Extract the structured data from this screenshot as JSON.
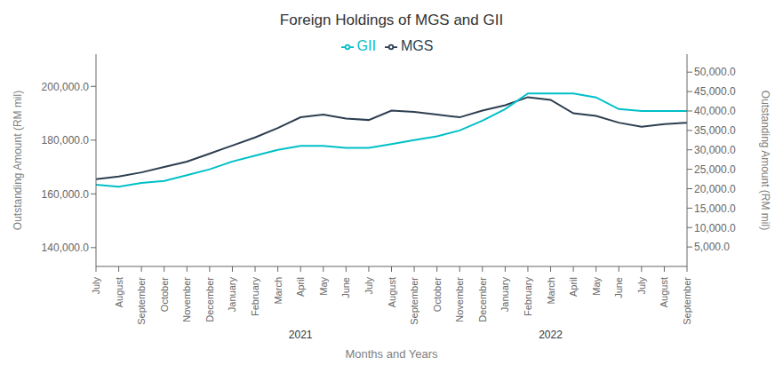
{
  "chart_data": {
    "type": "line",
    "title": "Foreign Holdings of MGS and GII",
    "xlabel": "Months and Years",
    "ylabel": "Outstanding Amount (RM mil)",
    "y2label": "Outstanding Amount (RM mil)",
    "categories": [
      "July",
      "August",
      "September",
      "October",
      "November",
      "December",
      "January",
      "February",
      "March",
      "April",
      "May",
      "June",
      "July",
      "August",
      "September",
      "October",
      "November",
      "December",
      "January",
      "February",
      "March",
      "April",
      "May",
      "June",
      "July",
      "August",
      "September"
    ],
    "series": [
      {
        "name": "MGS",
        "color": "#2c3e50",
        "values": [
          165500,
          166500,
          168000,
          170000,
          172000,
          175000,
          178000,
          181000,
          184500,
          188500,
          189500,
          188000,
          187500,
          191000,
          190500,
          189500,
          188500,
          191000,
          193000,
          196000,
          195000,
          190000,
          189000,
          186500,
          185000,
          186000,
          186500
        ]
      },
      {
        "name": "GII",
        "color": "#00c0c7",
        "axis": "y2",
        "values": [
          21000,
          20500,
          21500,
          22000,
          23500,
          25000,
          27000,
          28500,
          30000,
          31000,
          31000,
          30500,
          30500,
          31500,
          32500,
          33500,
          35000,
          37500,
          40500,
          44500,
          44500,
          44500,
          43500,
          40500,
          40000,
          40000,
          40000
        ]
      }
    ],
    "ylim": [
      133000,
      212000
    ],
    "yticks": [
      {
        "value": 140000,
        "label": "140,000.0"
      },
      {
        "value": 160000,
        "label": "160,000.0"
      },
      {
        "value": 180000,
        "label": "180,000.0"
      },
      {
        "value": 200000,
        "label": "200,000.0"
      }
    ],
    "y2lim": [
      0,
      54620
    ],
    "y2ticks": [
      {
        "value": 5000,
        "label": "5,000.0"
      },
      {
        "value": 10000,
        "label": "10,000.0"
      },
      {
        "value": 15000,
        "label": "15,000.0"
      },
      {
        "value": 20000,
        "label": "20,000.0"
      },
      {
        "value": 25000,
        "label": "25,000.0"
      },
      {
        "value": 30000,
        "label": "30,000.0"
      },
      {
        "value": 35000,
        "label": "35,000.0"
      },
      {
        "value": 40000,
        "label": "40,000.0"
      },
      {
        "value": 45000,
        "label": "45,000.0"
      },
      {
        "value": 50000,
        "label": "50,000.0"
      }
    ],
    "annotations": [
      {
        "text": "2021",
        "x": 9
      },
      {
        "text": "2022",
        "x": 20
      }
    ],
    "legend": "top",
    "grid": false
  }
}
